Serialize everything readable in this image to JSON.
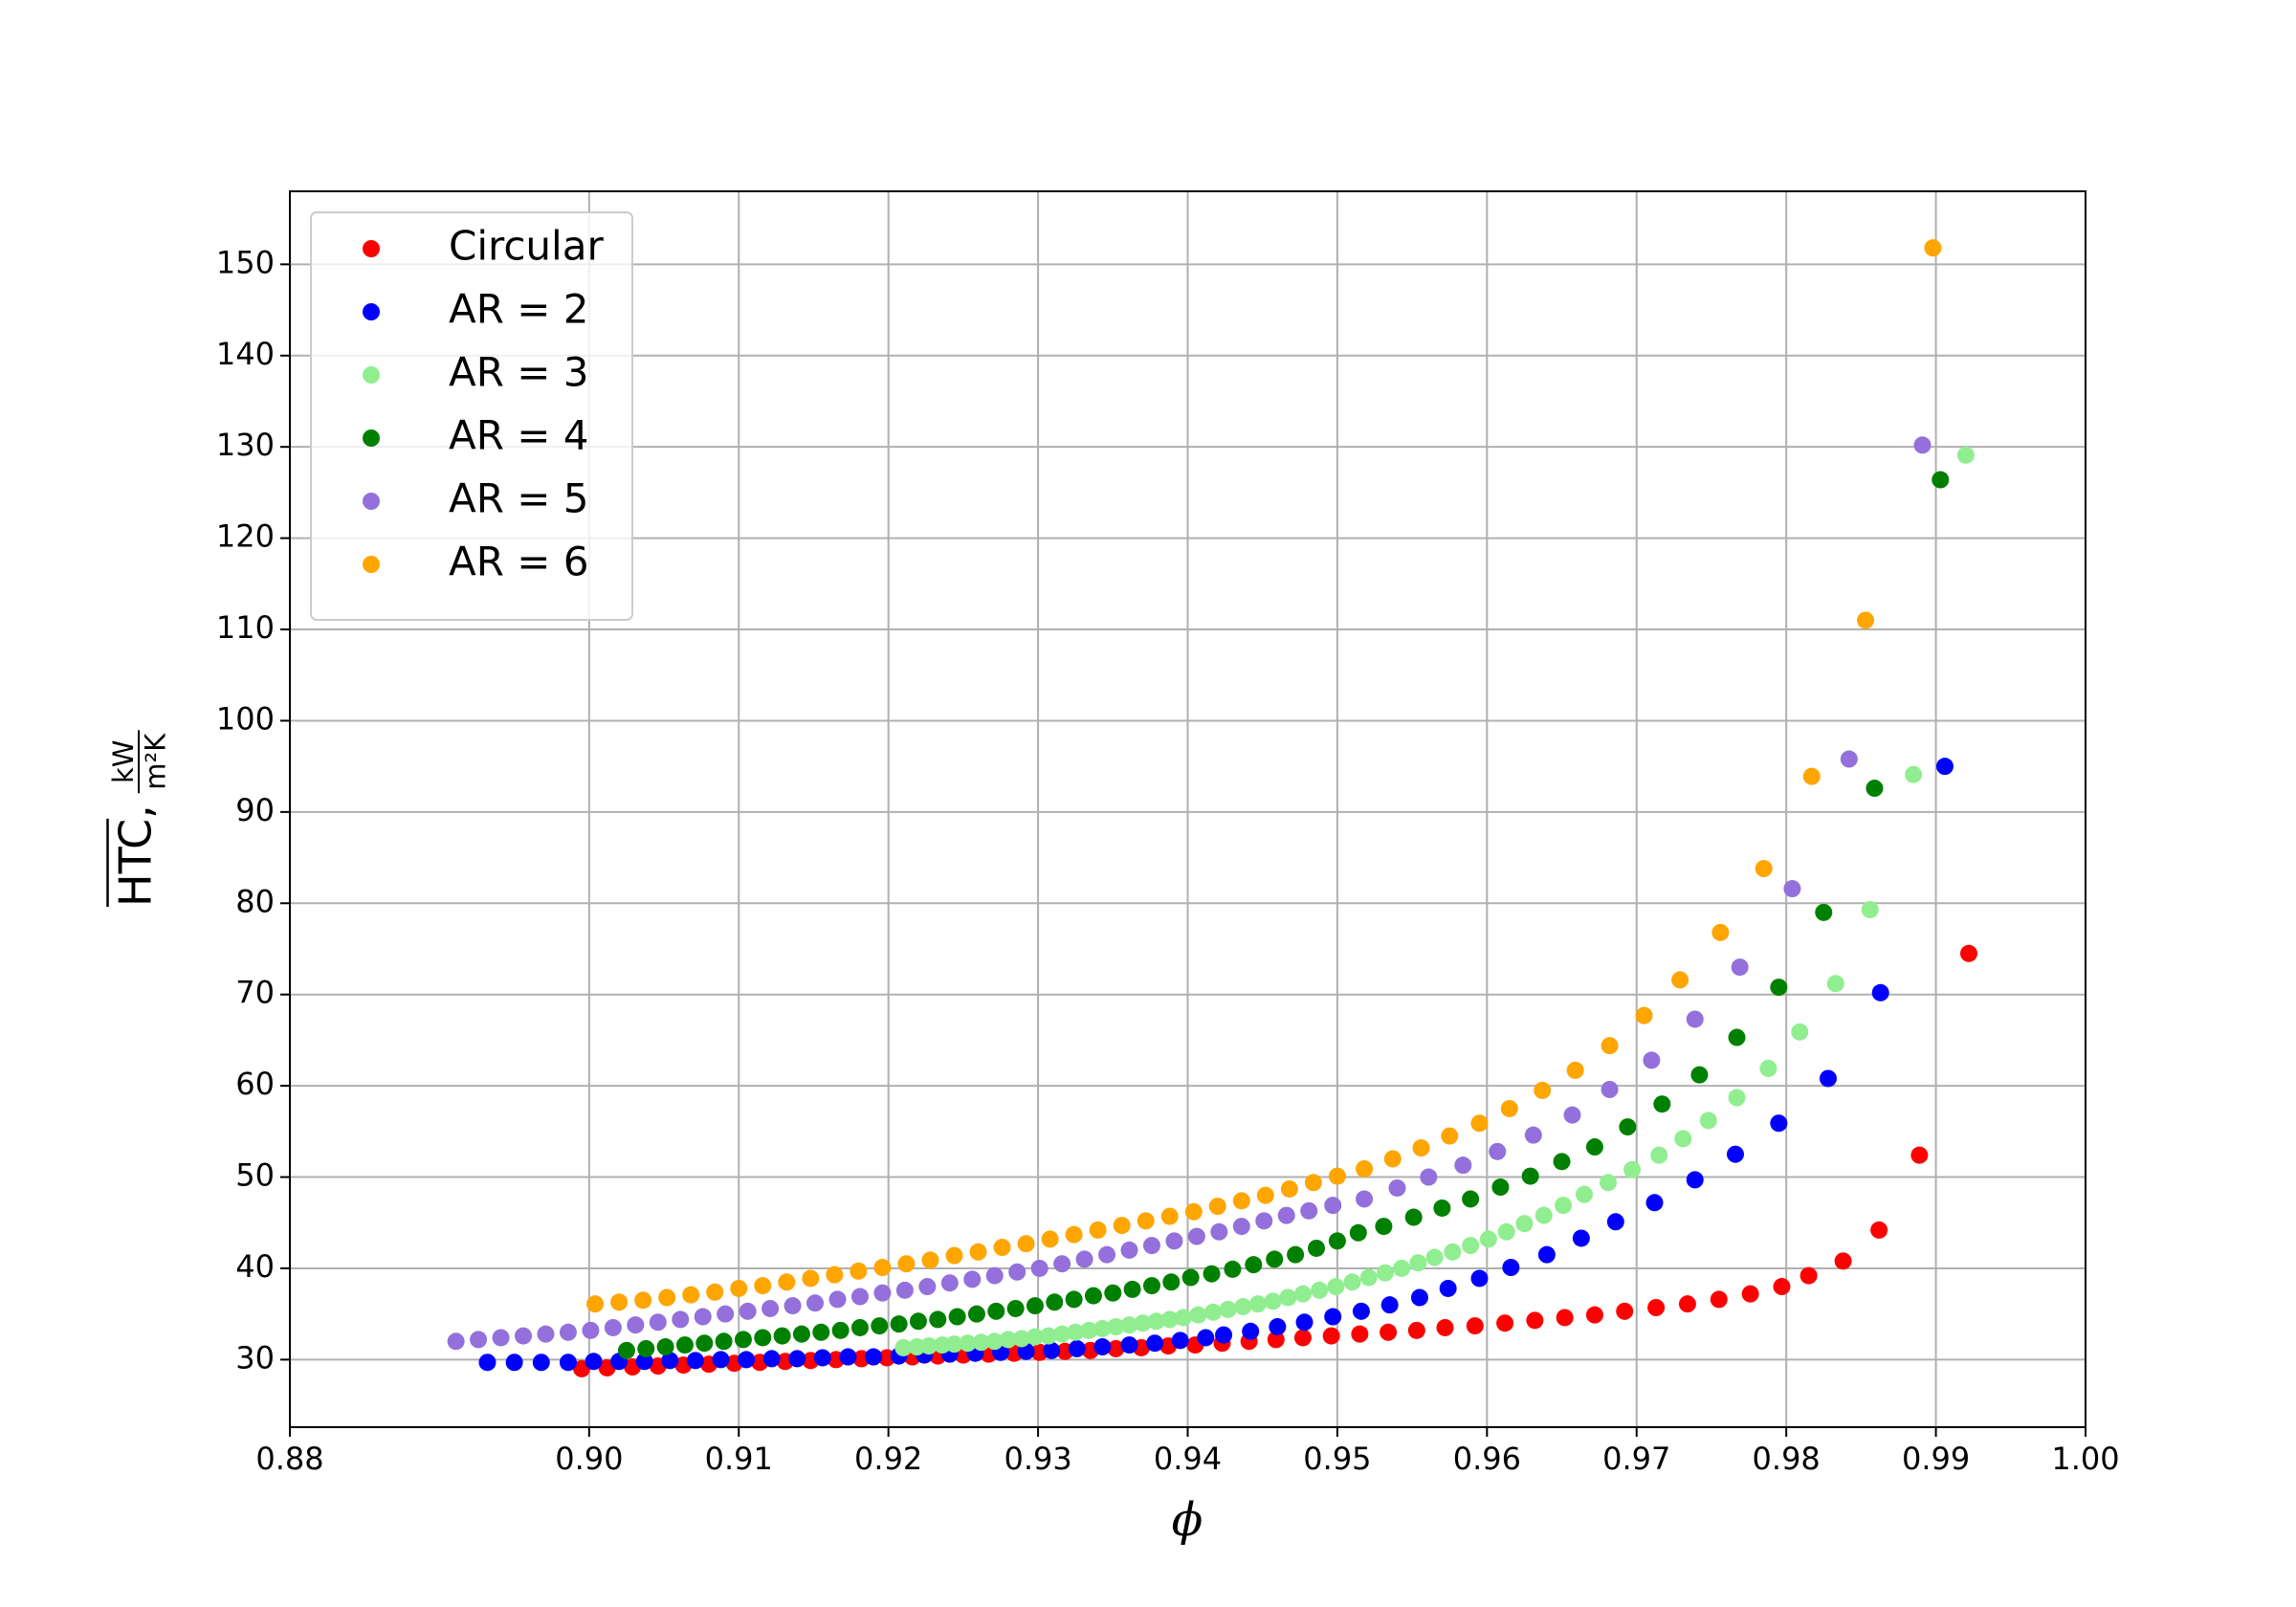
{
  "chart_data": {
    "type": "scatter",
    "xlabel": "ϕ",
    "ylabel": {
      "symbol": "HTC",
      "separator": ",",
      "unit_numerator": "kW",
      "unit_denominator": "m²K"
    },
    "xlim": [
      0.88,
      1.0
    ],
    "ylim": [
      22.6,
      158.0
    ],
    "xticks": [
      0.88,
      {
        "value": 0.9,
        "label": "0.90"
      },
      0.91,
      0.92,
      0.93,
      0.94,
      0.95,
      0.96,
      0.97,
      0.98,
      0.99,
      {
        "value": 1.0,
        "label": "1.00"
      }
    ],
    "yticks": [
      30,
      40,
      50,
      60,
      70,
      80,
      90,
      100,
      110,
      120,
      130,
      140,
      150
    ],
    "grid": true,
    "legend": "upper left",
    "series": [
      {
        "name": "Circular",
        "color": "#ff0000",
        "x": [
          0.8995,
          0.9012,
          0.9029,
          0.9046,
          0.9063,
          0.908,
          0.9097,
          0.9114,
          0.9131,
          0.9148,
          0.9165,
          0.9182,
          0.9199,
          0.9216,
          0.9233,
          0.925,
          0.9267,
          0.9284,
          0.9301,
          0.9318,
          0.9335,
          0.9352,
          0.9369,
          0.9387,
          0.9405,
          0.9423,
          0.9441,
          0.9459,
          0.9477,
          0.9496,
          0.9515,
          0.9534,
          0.9553,
          0.9572,
          0.9592,
          0.9612,
          0.9632,
          0.9652,
          0.9672,
          0.9692,
          0.9713,
          0.9734,
          0.9755,
          0.9776,
          0.9797,
          0.9815,
          0.9838,
          0.9862,
          0.9889,
          0.9922
        ],
        "values": [
          29.0,
          29.1,
          29.2,
          29.3,
          29.4,
          29.5,
          29.6,
          29.7,
          29.8,
          29.9,
          30.0,
          30.1,
          30.2,
          30.3,
          30.4,
          30.5,
          30.6,
          30.7,
          30.8,
          30.9,
          31.0,
          31.2,
          31.3,
          31.5,
          31.6,
          31.8,
          32.0,
          32.2,
          32.4,
          32.6,
          32.8,
          33.0,
          33.2,
          33.5,
          33.7,
          34.0,
          34.3,
          34.6,
          34.9,
          35.3,
          35.7,
          36.1,
          36.6,
          37.2,
          38.0,
          39.2,
          40.8,
          44.2,
          52.4,
          74.5
        ]
      },
      {
        "name": "AR = 2",
        "color": "#0000ff",
        "x": [
          0.8932,
          0.895,
          0.8968,
          0.8986,
          0.9003,
          0.902,
          0.9037,
          0.9054,
          0.9071,
          0.9088,
          0.9105,
          0.9122,
          0.9139,
          0.9156,
          0.9173,
          0.919,
          0.9207,
          0.9224,
          0.9241,
          0.9258,
          0.9275,
          0.9292,
          0.9309,
          0.9326,
          0.9343,
          0.9361,
          0.9378,
          0.9395,
          0.9412,
          0.9424,
          0.9442,
          0.946,
          0.9478,
          0.9497,
          0.9516,
          0.9535,
          0.9555,
          0.9574,
          0.9595,
          0.9616,
          0.964,
          0.9663,
          0.9686,
          0.9712,
          0.9739,
          0.9766,
          0.9795,
          0.9828,
          0.9863,
          0.9906
        ],
        "values": [
          29.7,
          29.7,
          29.7,
          29.7,
          29.8,
          29.8,
          29.8,
          29.9,
          29.9,
          30.0,
          30.0,
          30.1,
          30.1,
          30.2,
          30.3,
          30.3,
          30.4,
          30.5,
          30.6,
          30.7,
          30.8,
          30.9,
          31.0,
          31.2,
          31.4,
          31.6,
          31.8,
          32.1,
          32.4,
          32.7,
          33.1,
          33.6,
          34.1,
          34.7,
          35.3,
          36.0,
          36.8,
          37.8,
          38.9,
          40.1,
          41.5,
          43.3,
          45.1,
          47.2,
          49.7,
          52.5,
          55.9,
          60.8,
          70.2,
          95.0
        ]
      },
      {
        "name": "AR = 3",
        "color": "#90ee90",
        "x": [
          0.921,
          0.9219,
          0.9227,
          0.9236,
          0.9244,
          0.9253,
          0.9262,
          0.9271,
          0.928,
          0.9289,
          0.9298,
          0.9307,
          0.9316,
          0.9325,
          0.9334,
          0.9343,
          0.9352,
          0.9361,
          0.937,
          0.9379,
          0.9388,
          0.9397,
          0.9407,
          0.9417,
          0.9427,
          0.9437,
          0.9447,
          0.9457,
          0.9467,
          0.9477,
          0.9488,
          0.9499,
          0.951,
          0.9521,
          0.9532,
          0.9543,
          0.9554,
          0.9565,
          0.9577,
          0.9589,
          0.9601,
          0.9613,
          0.9625,
          0.9638,
          0.9651,
          0.9665,
          0.9681,
          0.9697,
          0.9715,
          0.9731,
          0.9748,
          0.9767,
          0.9788,
          0.9809,
          0.9833,
          0.9856,
          0.9885,
          0.992
        ],
        "values": [
          31.3,
          31.4,
          31.5,
          31.6,
          31.7,
          31.8,
          31.9,
          32.0,
          32.2,
          32.3,
          32.5,
          32.6,
          32.8,
          33.0,
          33.2,
          33.4,
          33.6,
          33.8,
          34.0,
          34.2,
          34.4,
          34.6,
          34.9,
          35.2,
          35.5,
          35.8,
          36.1,
          36.4,
          36.8,
          37.2,
          37.6,
          38.0,
          38.5,
          39.0,
          39.5,
          40.0,
          40.6,
          41.2,
          41.8,
          42.5,
          43.2,
          44.0,
          44.9,
          45.8,
          46.9,
          48.1,
          49.4,
          50.8,
          52.4,
          54.2,
          56.2,
          58.7,
          61.9,
          65.9,
          71.2,
          79.3,
          94.1,
          129.1
        ]
      },
      {
        "name": "AR = 4",
        "color": "#008000",
        "x": [
          0.9025,
          0.9038,
          0.9051,
          0.9064,
          0.9077,
          0.909,
          0.9103,
          0.9116,
          0.9129,
          0.9142,
          0.9155,
          0.9168,
          0.9181,
          0.9194,
          0.9207,
          0.922,
          0.9233,
          0.9246,
          0.9259,
          0.9272,
          0.9285,
          0.9298,
          0.9311,
          0.9324,
          0.9337,
          0.935,
          0.9363,
          0.9376,
          0.9389,
          0.9402,
          0.9416,
          0.943,
          0.9444,
          0.9458,
          0.9472,
          0.9486,
          0.95,
          0.9514,
          0.9531,
          0.9551,
          0.957,
          0.9589,
          0.9609,
          0.9629,
          0.965,
          0.9672,
          0.9694,
          0.9717,
          0.9742,
          0.9767,
          0.9795,
          0.9825,
          0.9859,
          0.9903
        ],
        "values": [
          31.0,
          31.2,
          31.4,
          31.6,
          31.8,
          32.0,
          32.2,
          32.4,
          32.6,
          32.8,
          33.0,
          33.2,
          33.5,
          33.7,
          33.9,
          34.2,
          34.4,
          34.7,
          35.0,
          35.3,
          35.6,
          35.9,
          36.3,
          36.6,
          37.0,
          37.3,
          37.7,
          38.1,
          38.5,
          39.0,
          39.4,
          39.9,
          40.4,
          41.0,
          41.5,
          42.2,
          43.0,
          43.9,
          44.6,
          45.6,
          46.6,
          47.6,
          48.9,
          50.1,
          51.7,
          53.3,
          55.5,
          58.0,
          61.2,
          65.3,
          70.8,
          79.0,
          92.6,
          126.4
        ]
      },
      {
        "name": "AR = 5",
        "color": "#9370db",
        "x": [
          0.8911,
          0.8926,
          0.8941,
          0.8956,
          0.8971,
          0.8986,
          0.9001,
          0.9016,
          0.9031,
          0.9046,
          0.9061,
          0.9076,
          0.9091,
          0.9106,
          0.9121,
          0.9136,
          0.9151,
          0.9166,
          0.9181,
          0.9196,
          0.9211,
          0.9226,
          0.9241,
          0.9256,
          0.9271,
          0.9286,
          0.9301,
          0.9316,
          0.9331,
          0.9346,
          0.9361,
          0.9376,
          0.9391,
          0.9406,
          0.9421,
          0.9436,
          0.9451,
          0.9466,
          0.9481,
          0.9497,
          0.9518,
          0.954,
          0.9561,
          0.9584,
          0.9607,
          0.9631,
          0.9657,
          0.9682,
          0.971,
          0.9739,
          0.9769,
          0.9804,
          0.9842,
          0.9891
        ],
        "values": [
          32.0,
          32.2,
          32.4,
          32.6,
          32.8,
          33.0,
          33.2,
          33.5,
          33.8,
          34.1,
          34.4,
          34.7,
          35.0,
          35.3,
          35.6,
          35.9,
          36.2,
          36.6,
          36.9,
          37.3,
          37.6,
          38.0,
          38.4,
          38.8,
          39.2,
          39.6,
          40.0,
          40.5,
          41.0,
          41.5,
          42.0,
          42.5,
          43.0,
          43.5,
          44.0,
          44.6,
          45.2,
          45.8,
          46.3,
          46.9,
          47.6,
          48.8,
          50.0,
          51.3,
          52.8,
          54.6,
          56.8,
          59.6,
          62.8,
          67.3,
          73.0,
          81.6,
          95.8,
          130.2
        ]
      },
      {
        "name": "AR = 6",
        "color": "#ffa500",
        "x": [
          0.9004,
          0.902,
          0.9036,
          0.9052,
          0.9068,
          0.9084,
          0.91,
          0.9116,
          0.9132,
          0.9148,
          0.9164,
          0.918,
          0.9196,
          0.9212,
          0.9228,
          0.9244,
          0.926,
          0.9276,
          0.9292,
          0.9308,
          0.9324,
          0.934,
          0.9356,
          0.9372,
          0.9388,
          0.9404,
          0.942,
          0.9436,
          0.9452,
          0.9468,
          0.9484,
          0.95,
          0.9518,
          0.9537,
          0.9556,
          0.9575,
          0.9595,
          0.9615,
          0.9637,
          0.9659,
          0.9682,
          0.9705,
          0.9729,
          0.9756,
          0.9785,
          0.9817,
          0.9853,
          0.9898
        ],
        "values": [
          36.1,
          36.3,
          36.5,
          36.8,
          37.1,
          37.4,
          37.8,
          38.1,
          38.5,
          38.9,
          39.3,
          39.7,
          40.1,
          40.5,
          40.9,
          41.4,
          41.8,
          42.3,
          42.7,
          43.2,
          43.7,
          44.2,
          44.7,
          45.2,
          45.7,
          46.2,
          46.8,
          47.4,
          48.0,
          48.7,
          49.4,
          50.1,
          50.9,
          52.0,
          53.2,
          54.5,
          55.9,
          57.5,
          59.5,
          61.7,
          64.4,
          67.7,
          71.6,
          76.8,
          83.8,
          93.9,
          111.0,
          151.8
        ]
      }
    ]
  }
}
